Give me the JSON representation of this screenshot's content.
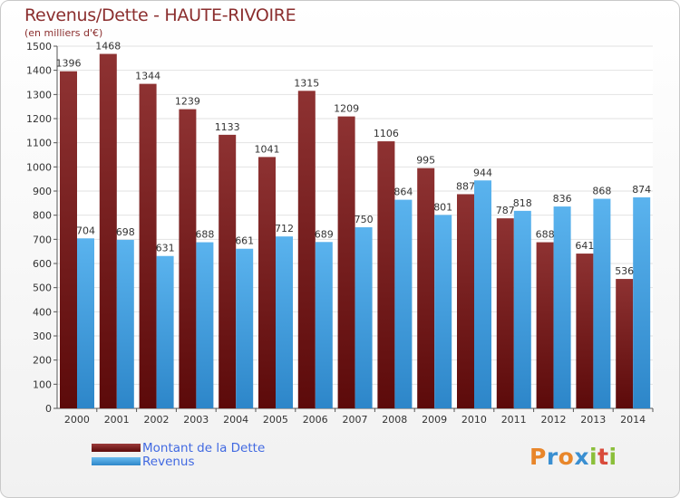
{
  "chart_data": {
    "type": "bar",
    "title": "Revenus/Dette - HAUTE-RIVOIRE",
    "subtitle": "(en milliers d'€)",
    "categories": [
      "2000",
      "2001",
      "2002",
      "2003",
      "2004",
      "2005",
      "2006",
      "2007",
      "2008",
      "2009",
      "2010",
      "2011",
      "2012",
      "2013",
      "2014"
    ],
    "series": [
      {
        "name": "Montant de la Dette",
        "color": "#7b1c1c",
        "values": [
          1396,
          1468,
          1344,
          1239,
          1133,
          1041,
          1315,
          1209,
          1106,
          995,
          887,
          787,
          688,
          641,
          536
        ]
      },
      {
        "name": "Revenus",
        "color": "#4ea6e4",
        "values": [
          704,
          698,
          631,
          688,
          661,
          712,
          689,
          750,
          864,
          801,
          944,
          818,
          836,
          868,
          874
        ]
      }
    ],
    "ylim": [
      0,
      1500
    ],
    "yticks": [
      0,
      100,
      200,
      300,
      400,
      500,
      600,
      700,
      800,
      900,
      1000,
      1100,
      1200,
      1300,
      1400,
      1500
    ],
    "grid": true,
    "legend": "bottom-left"
  },
  "brand": {
    "letters": [
      "P",
      "r",
      "o",
      "x",
      "i",
      "t",
      "i"
    ],
    "colors": [
      "#e8862a",
      "#3a8fd1",
      "#e8862a",
      "#3a8fd1",
      "#8bbf3a",
      "#d94b3b",
      "#8bbf3a"
    ]
  }
}
